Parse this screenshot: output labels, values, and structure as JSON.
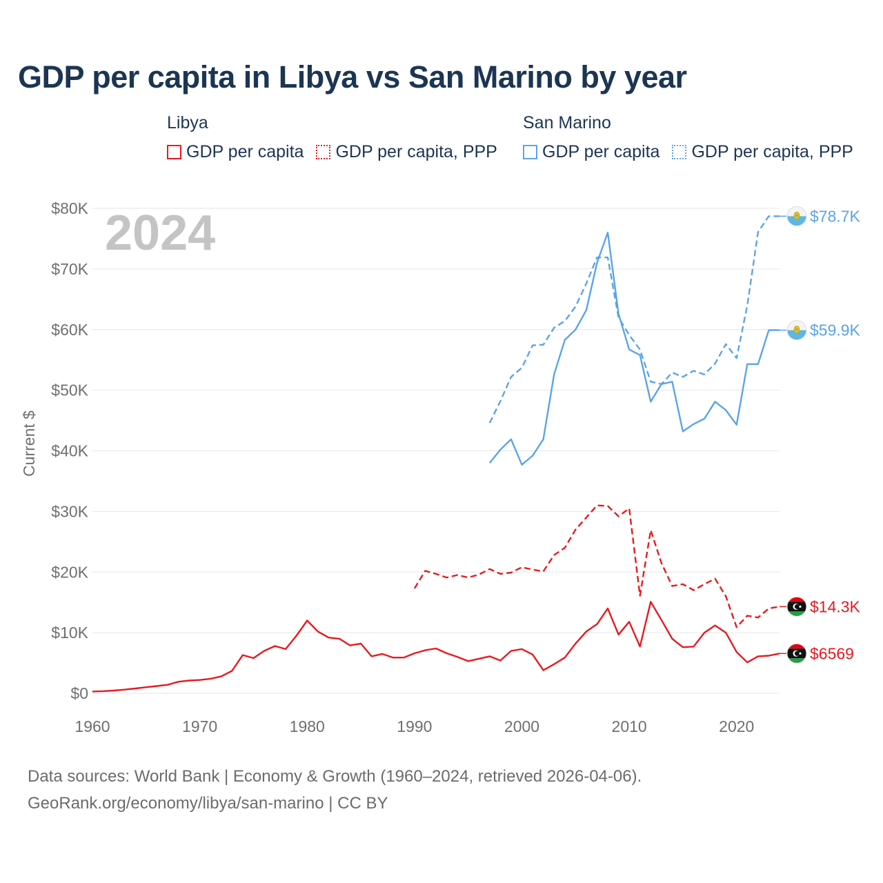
{
  "title": "GDP per capita in Libya vs San Marino by year",
  "legend": {
    "groups": [
      {
        "name": "Libya",
        "items": [
          {
            "label": "GDP per capita",
            "style": "solid",
            "color": "#e8191e"
          },
          {
            "label": "GDP per capita, PPP",
            "style": "dotted",
            "color": "#e8191e"
          }
        ]
      },
      {
        "name": "San Marino",
        "items": [
          {
            "label": "GDP per capita",
            "style": "solid",
            "color": "#5aa4e6"
          },
          {
            "label": "GDP per capita, PPP",
            "style": "dotted",
            "color": "#5aa4e6"
          }
        ]
      }
    ]
  },
  "footer": {
    "line1": "Data sources: World Bank | Economy & Growth (1960–2024, retrieved 2026-04-06).",
    "line2": "GeoRank.org/economy/libya/san-marino | CC BY"
  },
  "chart_data": {
    "type": "line",
    "title": "GDP per capita in Libya vs San Marino by year",
    "year_watermark": "2024",
    "ylabel": "Current $",
    "xlabel": "",
    "xlim": [
      1960,
      2024
    ],
    "ylim": [
      0,
      80000
    ],
    "x_ticks": [
      1960,
      1970,
      1980,
      1990,
      2000,
      2010,
      2020
    ],
    "y_ticks": [
      0,
      10000,
      20000,
      30000,
      40000,
      50000,
      60000,
      70000,
      80000
    ],
    "y_tick_labels": [
      "$0",
      "$10K",
      "$20K",
      "$30K",
      "$40K",
      "$50K",
      "$60K",
      "$70K",
      "$80K"
    ],
    "grid": true,
    "series": [
      {
        "name": "Libya GDP per capita",
        "color": "#e8191e",
        "dash": "solid",
        "end_label": "$6569",
        "flag": "libya",
        "x": [
          1960,
          1961,
          1962,
          1963,
          1964,
          1965,
          1966,
          1967,
          1968,
          1969,
          1970,
          1971,
          1972,
          1973,
          1974,
          1975,
          1976,
          1977,
          1978,
          1979,
          1980,
          1981,
          1982,
          1983,
          1984,
          1985,
          1986,
          1987,
          1988,
          1989,
          1990,
          1991,
          1992,
          1993,
          1994,
          1995,
          1996,
          1997,
          1998,
          1999,
          2000,
          2001,
          2002,
          2003,
          2004,
          2005,
          2006,
          2007,
          2008,
          2009,
          2010,
          2011,
          2012,
          2013,
          2014,
          2015,
          2016,
          2017,
          2018,
          2019,
          2020,
          2021,
          2022,
          2023,
          2024
        ],
        "values": [
          300,
          350,
          450,
          600,
          800,
          1000,
          1200,
          1400,
          1900,
          2100,
          2200,
          2400,
          2800,
          3700,
          6300,
          5800,
          7000,
          7800,
          7300,
          9500,
          12000,
          10200,
          9200,
          9000,
          7900,
          8200,
          6100,
          6500,
          5900,
          5900,
          6600,
          7100,
          7400,
          6600,
          6000,
          5300,
          5700,
          6100,
          5400,
          7000,
          7300,
          6400,
          3800,
          4800,
          5900,
          8200,
          10200,
          11400,
          14000,
          9700,
          11800,
          7700,
          15100,
          12100,
          9000,
          7600,
          7700,
          10000,
          11200,
          10000,
          6800,
          5100,
          6100,
          6200,
          6569
        ]
      },
      {
        "name": "Libya GDP per capita, PPP",
        "color": "#e8191e",
        "dash": "dashed",
        "end_label": "$14.3K",
        "flag": "libya",
        "x": [
          1990,
          1991,
          1992,
          1993,
          1994,
          1995,
          1996,
          1997,
          1998,
          1999,
          2000,
          2001,
          2002,
          2003,
          2004,
          2005,
          2006,
          2007,
          2008,
          2009,
          2010,
          2011,
          2012,
          2013,
          2014,
          2015,
          2016,
          2017,
          2018,
          2019,
          2020,
          2021,
          2022,
          2023,
          2024
        ],
        "values": [
          17300,
          20200,
          19700,
          19100,
          19500,
          19100,
          19600,
          20500,
          19700,
          19900,
          20800,
          20400,
          20100,
          22800,
          24000,
          27000,
          29000,
          31000,
          30900,
          29200,
          30500,
          16100,
          26900,
          21500,
          17700,
          18000,
          17000,
          18000,
          18900,
          16000,
          10900,
          12800,
          12500,
          14000,
          14300
        ]
      },
      {
        "name": "San Marino GDP per capita",
        "color": "#5aa4e6",
        "dash": "solid",
        "end_label": "$59.9K",
        "flag": "san-marino",
        "x": [
          1997,
          1998,
          1999,
          2000,
          2001,
          2002,
          2003,
          2004,
          2005,
          2006,
          2007,
          2008,
          2009,
          2010,
          2011,
          2012,
          2013,
          2014,
          2015,
          2016,
          2017,
          2018,
          2019,
          2020,
          2021,
          2022,
          2023,
          2024
        ],
        "values": [
          38000,
          40200,
          41900,
          37700,
          39200,
          41900,
          52600,
          58300,
          60000,
          63200,
          71000,
          76000,
          62600,
          56700,
          55800,
          48100,
          51000,
          51400,
          43200,
          44400,
          45300,
          48100,
          46700,
          44300,
          54300,
          54300,
          59900,
          59900
        ]
      },
      {
        "name": "San Marino GDP per capita, PPP",
        "color": "#5aa4e6",
        "dash": "dashed",
        "end_label": "$78.7K",
        "flag": "san-marino",
        "x": [
          1997,
          1998,
          1999,
          2000,
          2001,
          2002,
          2003,
          2004,
          2005,
          2006,
          2007,
          2008,
          2009,
          2010,
          2011,
          2012,
          2013,
          2014,
          2015,
          2016,
          2017,
          2018,
          2019,
          2020,
          2021,
          2022,
          2023,
          2024
        ],
        "values": [
          44600,
          48200,
          52200,
          53700,
          57400,
          57500,
          60300,
          61400,
          63800,
          67600,
          71900,
          71900,
          62000,
          59100,
          56700,
          51400,
          51000,
          52900,
          52200,
          53200,
          52600,
          54400,
          57600,
          55300,
          64000,
          76100,
          78700,
          78700
        ]
      }
    ]
  }
}
